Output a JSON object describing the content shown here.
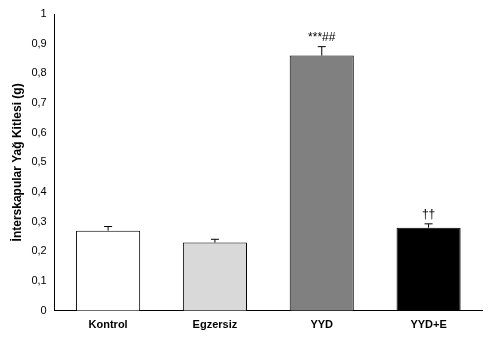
{
  "chart_data": {
    "type": "bar",
    "y_label": "İnterskapular Yağ Kitlesi (g)",
    "categories": [
      "Kontrol",
      "Egzersiz",
      "YYD",
      "YYD+E"
    ],
    "values": [
      0.27,
      0.23,
      0.86,
      0.28
    ],
    "errors": [
      0.014,
      0.011,
      0.03,
      0.013
    ],
    "colors": [
      "#ffffff",
      "#d9d9d9",
      "#808080",
      "#000000"
    ],
    "annotations": [
      {
        "category": "YYD",
        "text": "***##"
      },
      {
        "category": "YYD+E",
        "text": "††"
      }
    ],
    "ylim": [
      0,
      1
    ],
    "yticks": [
      0,
      {
        "value": 0.1,
        "label": "0,1"
      },
      {
        "value": 0.2,
        "label": "0,2"
      },
      {
        "value": 0.3,
        "label": "0,3"
      },
      {
        "value": 0.4,
        "label": "0,4"
      },
      {
        "value": 0.5,
        "label": "0,5"
      },
      {
        "value": 0.6,
        "label": "0,6"
      },
      {
        "value": 0.7,
        "label": "0,7"
      },
      {
        "value": 0.8,
        "label": "0,8"
      },
      {
        "value": 0.9,
        "label": "0,9"
      },
      1
    ],
    "grid": false
  }
}
